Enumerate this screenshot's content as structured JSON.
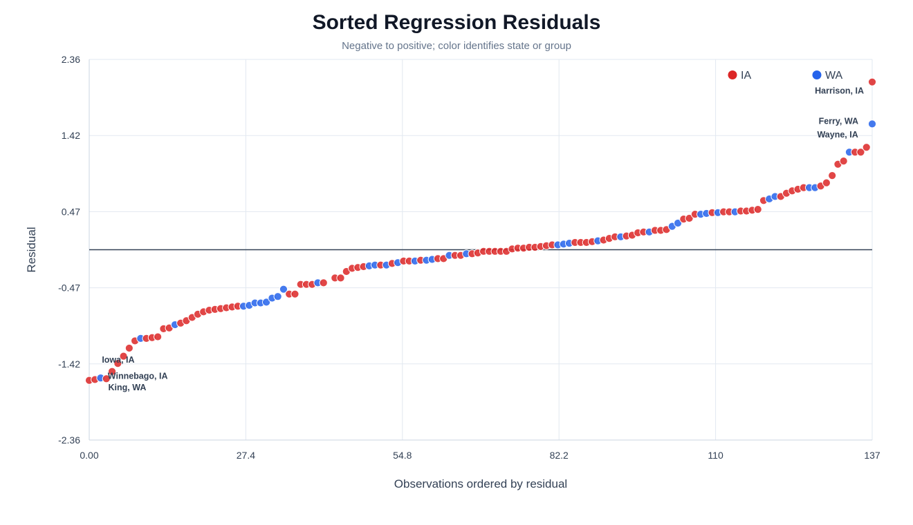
{
  "title": "Sorted Regression Residuals",
  "subtitle": "Negative to positive; color identifies state or group",
  "chart_data": {
    "type": "scatter",
    "title": "Sorted Regression Residuals",
    "subtitle": "Negative to positive; color identifies state or group",
    "xlabel": "Observations ordered by residual",
    "ylabel": "Residual",
    "xlim": [
      0,
      137
    ],
    "ylim": [
      -2.36,
      2.36
    ],
    "x_ticks": [
      "0.00",
      "27.4",
      "54.8",
      "82.2",
      "110",
      "137"
    ],
    "y_ticks": [
      "2.36",
      "1.42",
      "0.47",
      "-0.47",
      "-1.42",
      "-2.36"
    ],
    "grid": true,
    "reference_line_y": 0,
    "legend": {
      "position": "top-right",
      "entries": [
        {
          "name": "IA",
          "color": "#dc2626"
        },
        {
          "name": "WA",
          "color": "#2563eb"
        }
      ]
    },
    "series": [
      {
        "name": "IA",
        "color": "#dc2626",
        "points": [
          [
            0,
            -1.62
          ],
          [
            1,
            -1.61
          ],
          [
            3,
            -1.6
          ],
          [
            4,
            -1.51
          ],
          [
            5,
            -1.41
          ],
          [
            6,
            -1.32
          ],
          [
            7,
            -1.22
          ],
          [
            8,
            -1.13
          ],
          [
            10,
            -1.1
          ],
          [
            11,
            -1.09
          ],
          [
            12,
            -1.08
          ],
          [
            13,
            -0.98
          ],
          [
            14,
            -0.97
          ],
          [
            16,
            -0.91
          ],
          [
            17,
            -0.88
          ],
          [
            18,
            -0.84
          ],
          [
            19,
            -0.8
          ],
          [
            20,
            -0.77
          ],
          [
            21,
            -0.75
          ],
          [
            22,
            -0.74
          ],
          [
            23,
            -0.73
          ],
          [
            24,
            -0.72
          ],
          [
            25,
            -0.71
          ],
          [
            26,
            -0.7
          ],
          [
            35,
            -0.55
          ],
          [
            36,
            -0.55
          ],
          [
            37,
            -0.43
          ],
          [
            38,
            -0.43
          ],
          [
            39,
            -0.43
          ],
          [
            41,
            -0.41
          ],
          [
            43,
            -0.35
          ],
          [
            44,
            -0.35
          ],
          [
            45,
            -0.27
          ],
          [
            46,
            -0.23
          ],
          [
            47,
            -0.22
          ],
          [
            48,
            -0.21
          ],
          [
            51,
            -0.19
          ],
          [
            53,
            -0.17
          ],
          [
            55,
            -0.14
          ],
          [
            56,
            -0.14
          ],
          [
            58,
            -0.13
          ],
          [
            61,
            -0.11
          ],
          [
            62,
            -0.11
          ],
          [
            64,
            -0.07
          ],
          [
            65,
            -0.07
          ],
          [
            67,
            -0.05
          ],
          [
            68,
            -0.04
          ],
          [
            69,
            -0.02
          ],
          [
            70,
            -0.02
          ],
          [
            71,
            -0.02
          ],
          [
            72,
            -0.02
          ],
          [
            73,
            -0.02
          ],
          [
            74,
            0.01
          ],
          [
            75,
            0.02
          ],
          [
            76,
            0.02
          ],
          [
            77,
            0.03
          ],
          [
            78,
            0.03
          ],
          [
            79,
            0.04
          ],
          [
            80,
            0.05
          ],
          [
            81,
            0.06
          ],
          [
            85,
            0.09
          ],
          [
            86,
            0.09
          ],
          [
            87,
            0.09
          ],
          [
            88,
            0.1
          ],
          [
            90,
            0.12
          ],
          [
            91,
            0.14
          ],
          [
            92,
            0.16
          ],
          [
            94,
            0.17
          ],
          [
            95,
            0.18
          ],
          [
            96,
            0.21
          ],
          [
            97,
            0.22
          ],
          [
            99,
            0.24
          ],
          [
            100,
            0.24
          ],
          [
            101,
            0.25
          ],
          [
            104,
            0.38
          ],
          [
            105,
            0.39
          ],
          [
            106,
            0.44
          ],
          [
            109,
            0.46
          ],
          [
            111,
            0.47
          ],
          [
            112,
            0.47
          ],
          [
            114,
            0.48
          ],
          [
            115,
            0.48
          ],
          [
            116,
            0.49
          ],
          [
            117,
            0.5
          ],
          [
            118,
            0.61
          ],
          [
            121,
            0.66
          ],
          [
            122,
            0.7
          ],
          [
            123,
            0.73
          ],
          [
            124,
            0.75
          ],
          [
            125,
            0.77
          ],
          [
            128,
            0.79
          ],
          [
            129,
            0.83
          ],
          [
            130,
            0.92
          ],
          [
            131,
            1.06
          ],
          [
            132,
            1.1
          ],
          [
            134,
            1.21
          ],
          [
            135,
            1.21
          ],
          [
            136,
            1.27
          ],
          [
            137,
            2.08
          ]
        ]
      },
      {
        "name": "WA",
        "color": "#2563eb",
        "points": [
          [
            2,
            -1.59
          ],
          [
            9,
            -1.1
          ],
          [
            15,
            -0.93
          ],
          [
            27,
            -0.7
          ],
          [
            28,
            -0.69
          ],
          [
            29,
            -0.66
          ],
          [
            30,
            -0.66
          ],
          [
            31,
            -0.65
          ],
          [
            32,
            -0.6
          ],
          [
            33,
            -0.58
          ],
          [
            34,
            -0.49
          ],
          [
            40,
            -0.41
          ],
          [
            49,
            -0.2
          ],
          [
            50,
            -0.19
          ],
          [
            52,
            -0.19
          ],
          [
            54,
            -0.16
          ],
          [
            57,
            -0.14
          ],
          [
            59,
            -0.13
          ],
          [
            60,
            -0.12
          ],
          [
            63,
            -0.07
          ],
          [
            66,
            -0.05
          ],
          [
            82,
            0.06
          ],
          [
            83,
            0.07
          ],
          [
            84,
            0.08
          ],
          [
            89,
            0.11
          ],
          [
            93,
            0.16
          ],
          [
            98,
            0.22
          ],
          [
            102,
            0.29
          ],
          [
            103,
            0.33
          ],
          [
            107,
            0.44
          ],
          [
            108,
            0.45
          ],
          [
            110,
            0.46
          ],
          [
            113,
            0.47
          ],
          [
            119,
            0.63
          ],
          [
            120,
            0.66
          ],
          [
            126,
            0.77
          ],
          [
            127,
            0.77
          ],
          [
            133,
            1.21
          ],
          [
            137,
            1.56
          ]
        ]
      }
    ],
    "annotations": [
      {
        "text": "Iowa, IA",
        "x": 5,
        "y": -1.41
      },
      {
        "text": "Winnebago, IA",
        "x": 3,
        "y": -1.6
      },
      {
        "text": "King, WA",
        "x": 2,
        "y": -1.59
      },
      {
        "text": "Harrison, IA",
        "x": 137,
        "y": 2.08
      },
      {
        "text": "Wayne, IA",
        "x": 136,
        "y": 1.27
      },
      {
        "text": "Ferry, WA",
        "x": 137,
        "y": 1.56
      }
    ]
  }
}
